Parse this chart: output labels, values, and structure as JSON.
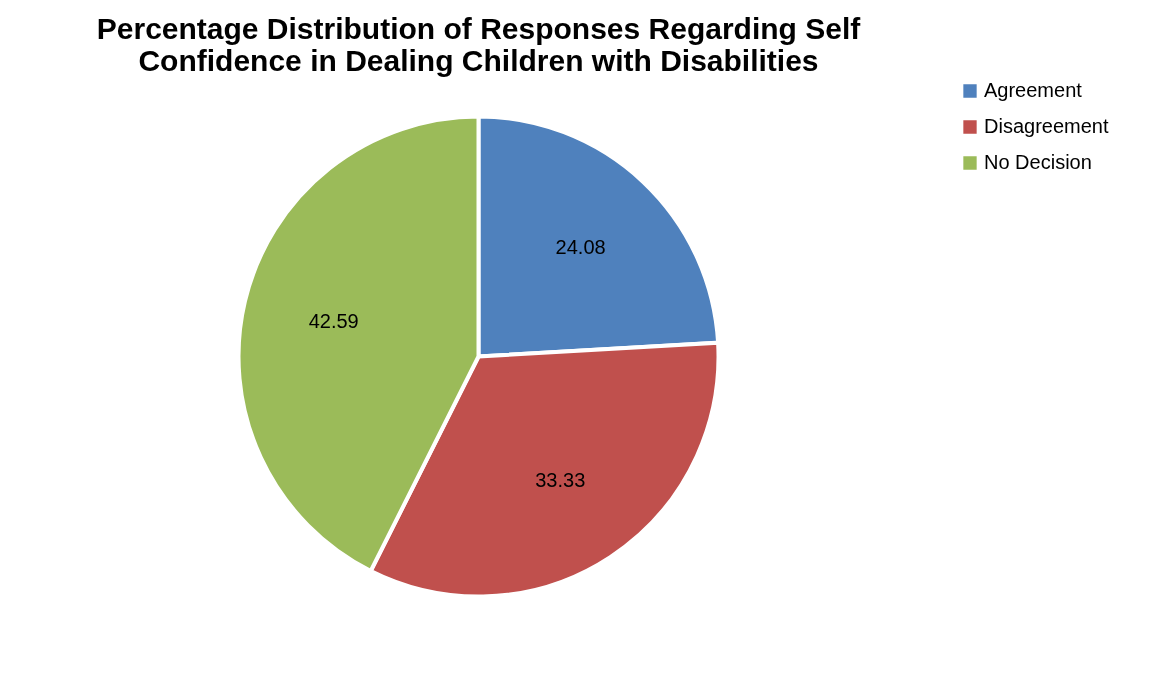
{
  "chart_data": {
    "type": "pie",
    "title": "Percentage Distribution of Responses Regarding Self Confidence in Dealing Children with Disabilities",
    "categories": [
      "Agreement",
      "Disagreement",
      "No Decision"
    ],
    "values": [
      24.08,
      33.33,
      42.59
    ],
    "colors": [
      "#4f81bd",
      "#c0504d",
      "#9bbb59"
    ],
    "data_labels": true,
    "legend": "right"
  }
}
